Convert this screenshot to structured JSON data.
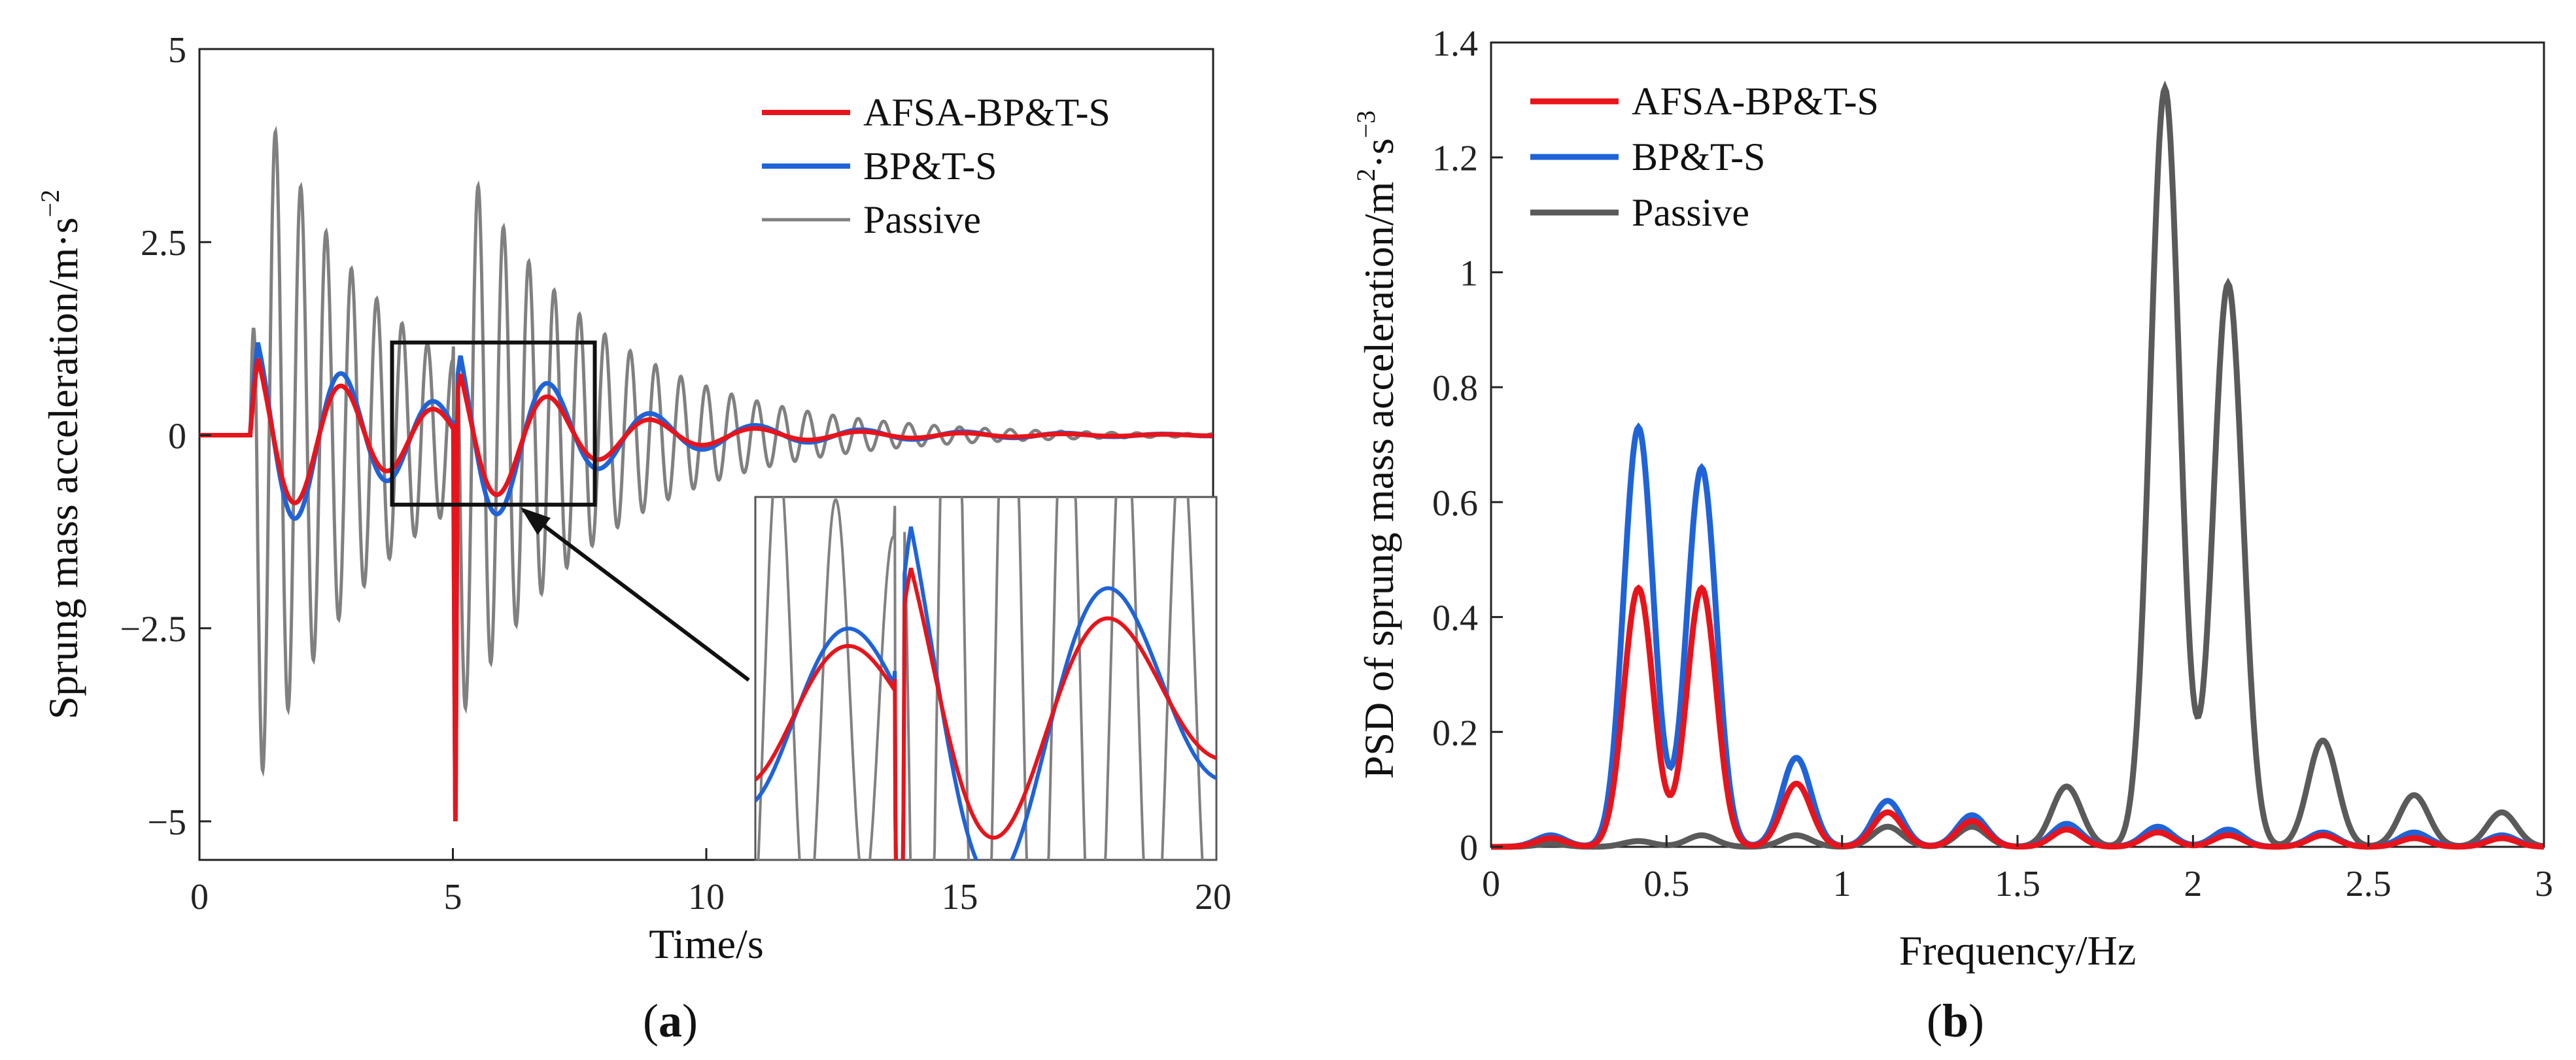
{
  "figure": {
    "panel_a_label": "a",
    "panel_b_label": "b"
  },
  "chart_data": [
    {
      "id": "a",
      "type": "line",
      "xlabel": "Time/s",
      "ylabel": "Sprung mass acceleration/m·s",
      "ylabel_sup": "−2",
      "xlim": [
        0,
        20
      ],
      "ylim": [
        -5.5,
        5
      ],
      "xticks": [
        0,
        5,
        10,
        15,
        20
      ],
      "xtick_labels": [
        "0",
        "5",
        "10",
        "15",
        "20"
      ],
      "yticks": [
        5,
        2.5,
        0,
        -2.5,
        -5
      ],
      "ytick_labels": [
        "5",
        "2.5",
        "0",
        "−2.5",
        "−5"
      ],
      "legend": [
        "AFSA-BP&T-S",
        "BP&T-S",
        "Passive"
      ],
      "legend_position": "top-right",
      "zoom_box_x": [
        3.8,
        7.8
      ],
      "zoom_box_y": [
        -0.9,
        1.2
      ],
      "series": [
        {
          "name": "AFSA-BP&T-S",
          "color": "#e8141b",
          "description": "damped response to two bumps at t=1s and t=5s",
          "events": [
            {
              "t0": 1.0,
              "amp": 1.2,
              "freq": 0.55,
              "decay": 0.35
            },
            {
              "t0": 5.0,
              "amp": 1.0,
              "freq": 0.5,
              "decay": 0.35
            }
          ],
          "spike": {
            "t": 5.05,
            "value": -5.0
          }
        },
        {
          "name": "BP&T-S",
          "color": "#1f63d8",
          "events": [
            {
              "t0": 1.0,
              "amp": 1.45,
              "freq": 0.55,
              "decay": 0.33
            },
            {
              "t0": 5.0,
              "amp": 1.3,
              "freq": 0.5,
              "decay": 0.33
            }
          ],
          "spike": {
            "t": 5.05,
            "value": -4.9
          }
        },
        {
          "name": "Passive",
          "color": "#808080",
          "events": [
            {
              "t0": 1.0,
              "amp": 4.8,
              "freq": 2.0,
              "decay": 0.4
            },
            {
              "t0": 5.0,
              "amp": 2.9,
              "freq": 2.0,
              "decay": 0.35
            }
          ],
          "spike": {
            "t": 5.05,
            "value": -4.8
          }
        }
      ]
    },
    {
      "id": "b",
      "type": "line",
      "xlabel": "Frequency/Hz",
      "ylabel": "PSD of sprung mass acceleration/m",
      "ylabel_sup": "2",
      "ylabel_mid": "·s",
      "ylabel_sup2": "−3",
      "xlim": [
        0,
        3
      ],
      "ylim": [
        0,
        1.4
      ],
      "xticks": [
        0,
        0.5,
        1,
        1.5,
        2,
        2.5,
        3
      ],
      "xtick_labels": [
        "0",
        "0.5",
        "1",
        "1.5",
        "2",
        "2.5",
        "3"
      ],
      "yticks": [
        0,
        0.2,
        0.4,
        0.6,
        0.8,
        1,
        1.2,
        1.4
      ],
      "ytick_labels": [
        "0",
        "0.2",
        "0.4",
        "0.6",
        "0.8",
        "1",
        "1.2",
        "1.4"
      ],
      "legend": [
        "AFSA-BP&T-S",
        "BP&T-S",
        "Passive"
      ],
      "legend_position": "top-left",
      "series": [
        {
          "name": "AFSA-BP&T-S",
          "color": "#e8141b",
          "peaks": [
            [
              0.17,
              0.015
            ],
            [
              0.42,
              0.45
            ],
            [
              0.6,
              0.45
            ],
            [
              0.87,
              0.11
            ],
            [
              1.13,
              0.06
            ],
            [
              1.37,
              0.045
            ],
            [
              1.64,
              0.03
            ],
            [
              1.9,
              0.025
            ],
            [
              2.1,
              0.02
            ],
            [
              2.37,
              0.02
            ],
            [
              2.63,
              0.015
            ],
            [
              2.88,
              0.015
            ]
          ]
        },
        {
          "name": "BP&T-S",
          "color": "#1f63d8",
          "peaks": [
            [
              0.17,
              0.02
            ],
            [
              0.42,
              0.73
            ],
            [
              0.6,
              0.66
            ],
            [
              0.87,
              0.155
            ],
            [
              1.13,
              0.08
            ],
            [
              1.37,
              0.055
            ],
            [
              1.64,
              0.04
            ],
            [
              1.9,
              0.035
            ],
            [
              2.1,
              0.03
            ],
            [
              2.37,
              0.025
            ],
            [
              2.63,
              0.025
            ],
            [
              2.88,
              0.02
            ]
          ]
        },
        {
          "name": "Passive",
          "color": "#5a5a5a",
          "peaks": [
            [
              0.17,
              0.005
            ],
            [
              0.42,
              0.01
            ],
            [
              0.6,
              0.02
            ],
            [
              0.87,
              0.02
            ],
            [
              1.13,
              0.035
            ],
            [
              1.37,
              0.035
            ],
            [
              1.64,
              0.105
            ],
            [
              1.92,
              1.32
            ],
            [
              2.1,
              0.98
            ],
            [
              2.37,
              0.185
            ],
            [
              2.63,
              0.09
            ],
            [
              2.88,
              0.06
            ]
          ]
        }
      ]
    }
  ]
}
